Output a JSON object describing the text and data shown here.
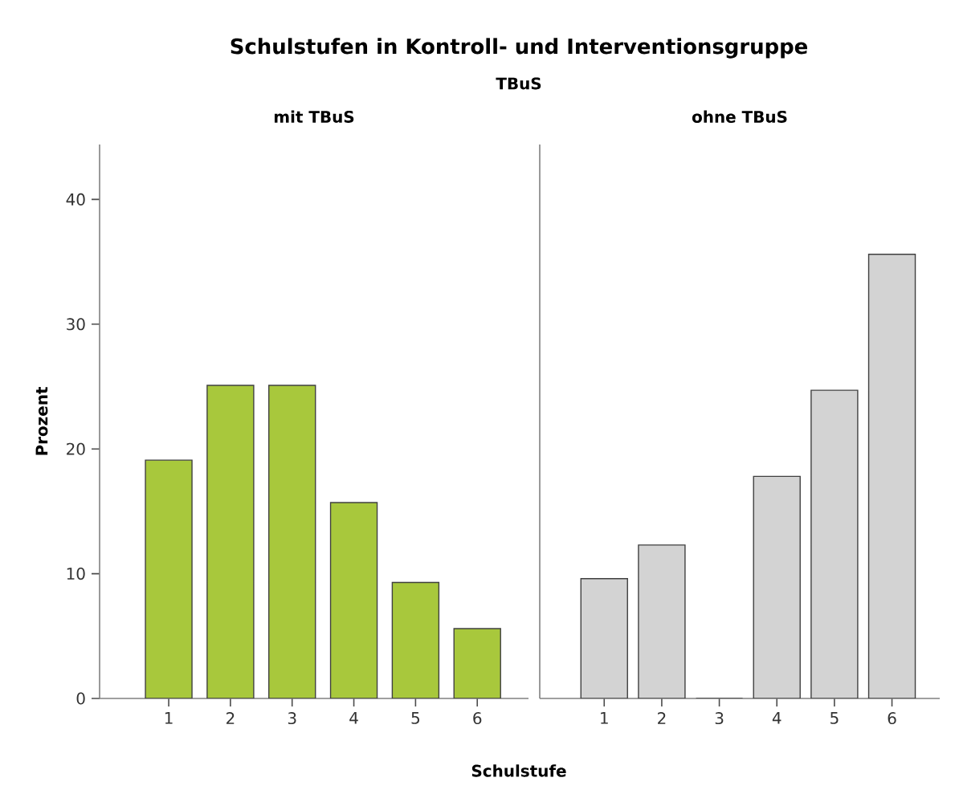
{
  "chart_data": [
    {
      "type": "bar",
      "title": "mit TBuS",
      "annotations": [
        "Schulstufen in Kontroll- und Interventionsgruppe",
        "TBuS"
      ],
      "xlabel": "Schulstufe",
      "ylabel": "Prozent",
      "categories": [
        "1",
        "2",
        "3",
        "4",
        "5",
        "6"
      ],
      "values": [
        19.1,
        25.1,
        25.1,
        15.7,
        9.3,
        5.6
      ],
      "color": "#a8c83c",
      "ylim": [
        0,
        44.4
      ],
      "yticks": [
        0,
        10,
        20,
        30,
        40
      ],
      "grid": false
    },
    {
      "type": "bar",
      "title": "ohne TBuS",
      "categories": [
        "1",
        "2",
        "3",
        "4",
        "5",
        "6"
      ],
      "values": [
        9.6,
        12.3,
        0,
        17.8,
        24.7,
        35.6
      ],
      "color": "#d3d3d3",
      "ylim": [
        0,
        44.4
      ],
      "yticks": [
        0,
        10,
        20,
        30,
        40
      ],
      "tick_labels": "x",
      "grid": false
    }
  ]
}
